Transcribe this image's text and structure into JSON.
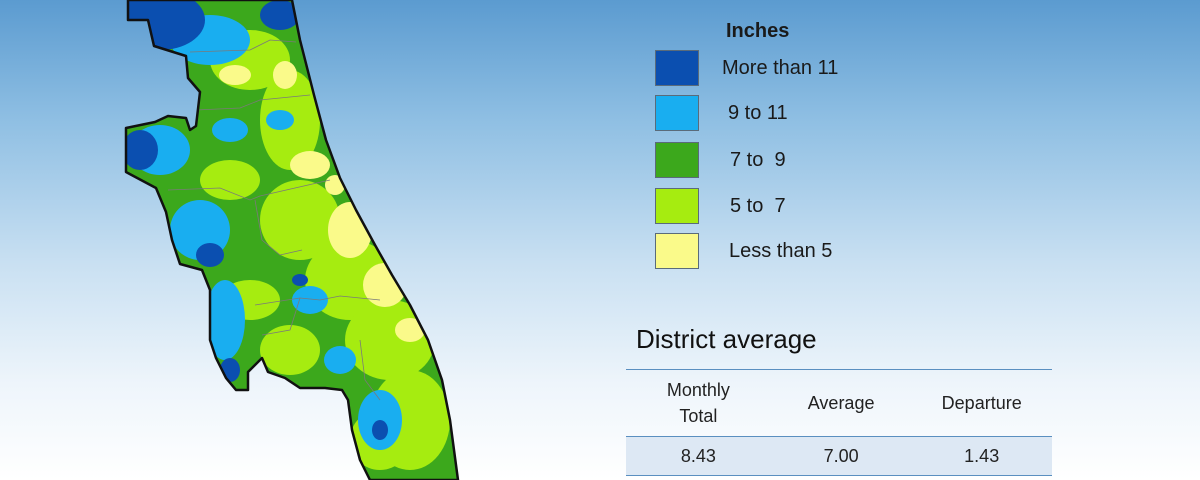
{
  "legend": {
    "title": "Inches",
    "items": [
      {
        "label": "More than 11",
        "color": "#0b4fb0"
      },
      {
        "label": "9 to 11",
        "color": "#19aef0"
      },
      {
        "label": "7 to  9",
        "color": "#3ca81c"
      },
      {
        "label": "5 to  7",
        "color": "#a6ec10"
      },
      {
        "label": "Less than 5",
        "color": "#fafa8a"
      }
    ]
  },
  "district_average": {
    "title": "District average",
    "headers": [
      "Monthly Total",
      "Average",
      "Departure"
    ],
    "values": [
      "8.43",
      "7.00",
      "1.43"
    ]
  }
}
